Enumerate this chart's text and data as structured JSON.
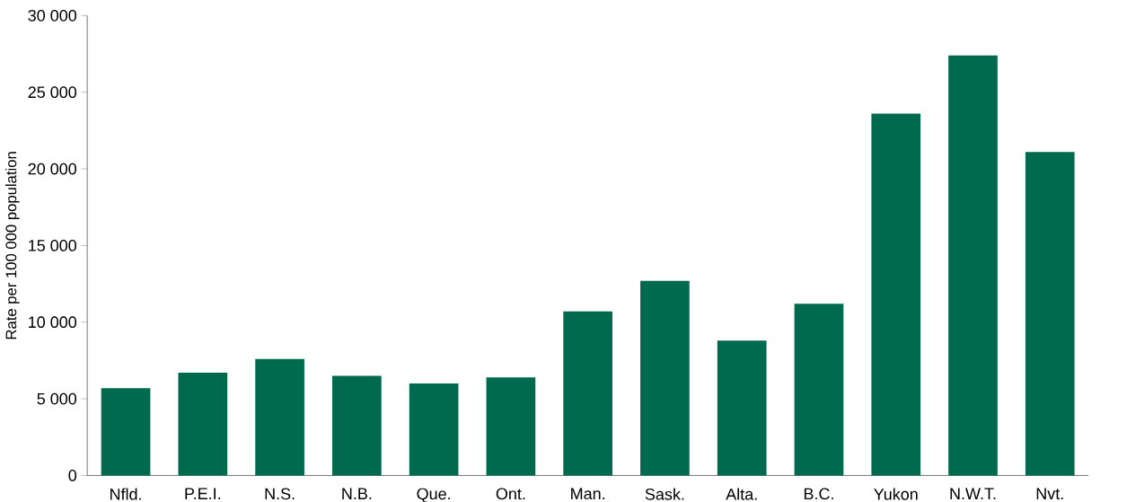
{
  "chart_data": {
    "type": "bar",
    "ylabel": "Rate per 100 000 population",
    "categories": [
      "Nfld.",
      "P.E.I.",
      "N.S.",
      "N.B.",
      "Que.",
      "Ont.",
      "Man.",
      "Sask.",
      "Alta.",
      "B.C.",
      "Yukon",
      "N.W.T.",
      "Nvt."
    ],
    "values": [
      5700,
      6700,
      7600,
      6500,
      6000,
      6400,
      10700,
      12700,
      8800,
      11200,
      23600,
      27400,
      21100
    ],
    "color": "#006a4e",
    "ylim": [
      0,
      30000
    ],
    "yticks": [
      0,
      {
        "value": 5000,
        "label": "5 000"
      },
      {
        "value": 10000,
        "label": "10 000"
      },
      {
        "value": 15000,
        "label": "15 000"
      },
      {
        "value": 20000,
        "label": "20 000"
      },
      {
        "value": 25000,
        "label": "25 000"
      },
      {
        "value": 30000,
        "label": "30 000"
      }
    ]
  }
}
